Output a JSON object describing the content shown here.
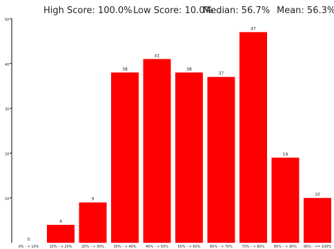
{
  "header": {
    "high": "High Score: 100.0%",
    "low": "Low Score: 10.0%",
    "median": "Median: 56.7%",
    "mean": "Mean: 56.3%"
  },
  "chart_data": {
    "type": "bar",
    "categories": [
      "0% - < 10%",
      "10% - < 20%",
      "20% - < 30%",
      "30% - < 40%",
      "40% - < 50%",
      "50% - < 60%",
      "60% - < 70%",
      "70% - < 80%",
      "80% - < 90%",
      "90% - <= 100%"
    ],
    "values": [
      0,
      4,
      9,
      38,
      41,
      38,
      37,
      47,
      19,
      10
    ],
    "ylim": [
      0,
      50
    ],
    "yticks": [
      10,
      20,
      30,
      40,
      50
    ],
    "grid": false,
    "colors": {
      "bar": "#ff0000",
      "axis": "#000000"
    }
  }
}
